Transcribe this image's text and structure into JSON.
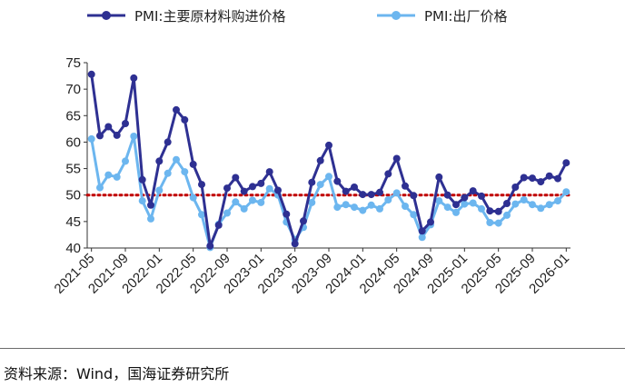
{
  "chart_data": {
    "type": "line",
    "title": "",
    "xlabel": "",
    "ylabel": "",
    "ylim": [
      40,
      75
    ],
    "yticks": [
      40,
      45,
      50,
      55,
      60,
      65,
      70,
      75
    ],
    "x": [
      "2021-05",
      "2021-06",
      "2021-07",
      "2021-08",
      "2021-09",
      "2021-10",
      "2021-11",
      "2021-12",
      "2022-01",
      "2022-02",
      "2022-03",
      "2022-04",
      "2022-05",
      "2022-06",
      "2022-07",
      "2022-08",
      "2022-09",
      "2022-10",
      "2022-11",
      "2022-12",
      "2023-01",
      "2023-02",
      "2023-03",
      "2023-04",
      "2023-05",
      "2023-06",
      "2023-07",
      "2023-08",
      "2023-09",
      "2023-10",
      "2023-11",
      "2023-12",
      "2024-01",
      "2024-02",
      "2024-03",
      "2024-04",
      "2024-05",
      "2024-06",
      "2024-07",
      "2024-08",
      "2024-09",
      "2024-10",
      "2024-11",
      "2024-12",
      "2025-01",
      "2025-02",
      "2025-03",
      "2025-04",
      "2025-05",
      "2025-06",
      "2025-07",
      "2025-08",
      "2025-09",
      "2025-10",
      "2025-11",
      "2025-12",
      "2026-01"
    ],
    "xtick_labels": [
      "2021-05",
      "2021-09",
      "2022-01",
      "2022-05",
      "2022-09",
      "2023-01",
      "2023-05",
      "2023-09",
      "2024-01",
      "2024-05",
      "2024-09",
      "2025-01",
      "2025-05",
      "2025-09",
      "2026-01"
    ],
    "reference_line": {
      "y": 50,
      "color": "#c00000",
      "style": "dotted"
    },
    "series": [
      {
        "name": "PMI:主要原材料购进价格",
        "color": "#2e3092",
        "values": [
          72.8,
          61.2,
          62.9,
          61.3,
          63.5,
          72.1,
          52.9,
          48.1,
          56.4,
          60.0,
          66.1,
          64.2,
          55.8,
          52.0,
          40.4,
          44.3,
          51.3,
          53.3,
          50.7,
          51.6,
          52.2,
          54.4,
          50.9,
          46.4,
          40.8,
          45.1,
          52.4,
          56.5,
          59.4,
          52.6,
          50.7,
          51.5,
          50.1,
          50.1,
          50.5,
          54.0,
          56.9,
          51.7,
          49.9,
          43.2,
          44.9,
          53.4,
          50.0,
          48.2,
          49.5,
          50.8,
          49.8,
          47.0,
          46.9,
          48.4,
          51.5,
          53.3,
          53.2,
          52.5,
          53.6,
          53.1,
          56.1
        ]
      },
      {
        "name": "PMI:出厂价格",
        "color": "#6cb6ef",
        "values": [
          60.6,
          51.4,
          53.8,
          53.4,
          56.4,
          61.1,
          48.9,
          45.5,
          50.9,
          54.1,
          56.7,
          54.4,
          49.5,
          46.3,
          40.1,
          44.5,
          46.6,
          48.7,
          47.4,
          49.0,
          48.6,
          51.2,
          50.0,
          44.9,
          41.6,
          43.9,
          48.6,
          52.0,
          53.5,
          47.7,
          48.2,
          47.7,
          47.1,
          48.1,
          47.4,
          49.1,
          50.4,
          47.9,
          46.3,
          42.0,
          44.4,
          48.9,
          47.7,
          46.7,
          48.3,
          48.5,
          47.4,
          44.8,
          44.7,
          46.2,
          48.3,
          49.1,
          48.2,
          47.5,
          48.2,
          48.9,
          50.6
        ]
      }
    ],
    "legend": {
      "placement": "top"
    }
  },
  "source_note": "资料来源：Wind，国海证券研究所"
}
